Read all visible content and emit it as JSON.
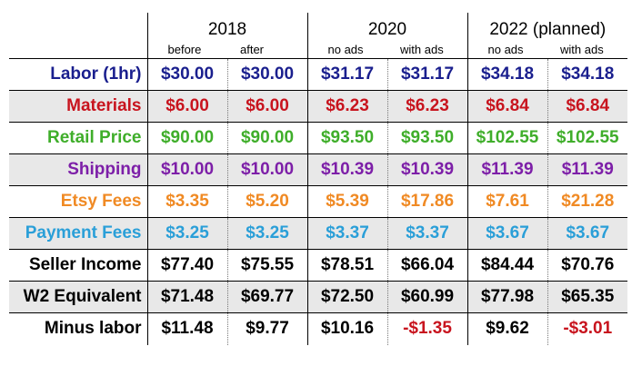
{
  "chart_data": {
    "type": "table",
    "year_groups": [
      "2018",
      "2020",
      "2022 (planned)"
    ],
    "columns": [
      "before",
      "after",
      "no ads",
      "with ads",
      "no ads",
      "with ads"
    ],
    "rows": [
      {
        "label": "Labor (1hr)",
        "color": "#1a1f8e",
        "values": [
          "$30.00",
          "$30.00",
          "$31.17",
          "$31.17",
          "$34.18",
          "$34.18"
        ]
      },
      {
        "label": "Materials",
        "color": "#c8141e",
        "values": [
          "$6.00",
          "$6.00",
          "$6.23",
          "$6.23",
          "$6.84",
          "$6.84"
        ]
      },
      {
        "label": "Retail Price",
        "color": "#3fae2a",
        "values": [
          "$90.00",
          "$90.00",
          "$93.50",
          "$93.50",
          "$102.55",
          "$102.55"
        ]
      },
      {
        "label": "Shipping",
        "color": "#7d1fa8",
        "values": [
          "$10.00",
          "$10.00",
          "$10.39",
          "$10.39",
          "$11.39",
          "$11.39"
        ]
      },
      {
        "label": "Etsy Fees",
        "color": "#f08a24",
        "values": [
          "$3.35",
          "$5.20",
          "$5.39",
          "$17.86",
          "$7.61",
          "$21.28"
        ]
      },
      {
        "label": "Payment Fees",
        "color": "#2a9fd8",
        "values": [
          "$3.25",
          "$3.25",
          "$3.37",
          "$3.37",
          "$3.67",
          "$3.67"
        ]
      },
      {
        "label": "Seller Income",
        "color": "#000000",
        "values": [
          "$77.40",
          "$75.55",
          "$78.51",
          "$66.04",
          "$84.44",
          "$70.76"
        ]
      },
      {
        "label": "W2 Equivalent",
        "color": "#000000",
        "values": [
          "$71.48",
          "$69.77",
          "$72.50",
          "$60.99",
          "$77.98",
          "$65.35"
        ]
      },
      {
        "label": "Minus labor",
        "color": "#000000",
        "values": [
          "$11.48",
          "$9.77",
          "$10.16",
          "-$1.35",
          "$9.62",
          "-$3.01"
        ]
      }
    ],
    "negative_color": "#c8141e",
    "shaded_row_color": "#e8e8e8"
  }
}
